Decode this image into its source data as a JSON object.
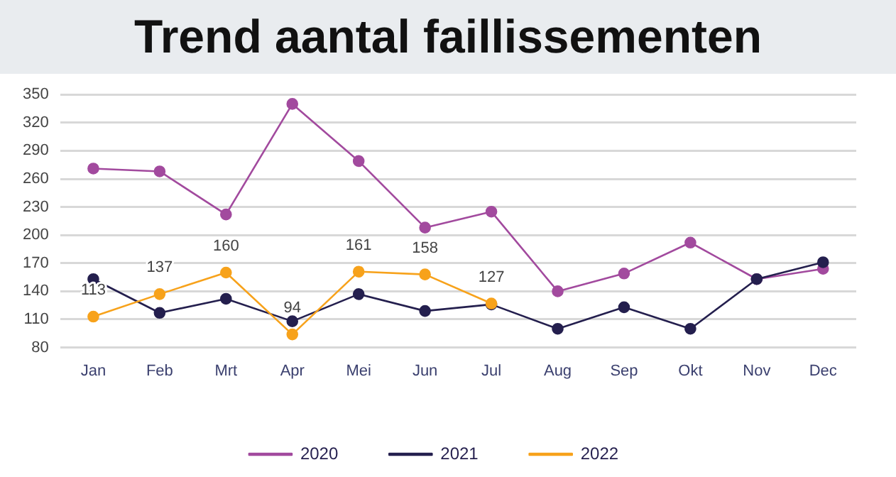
{
  "chart_data": {
    "type": "line",
    "title": "Trend aantal faillissementen",
    "categories": [
      "Jan",
      "Feb",
      "Mrt",
      "Apr",
      "Mei",
      "Jun",
      "Jul",
      "Aug",
      "Sep",
      "Okt",
      "Nov",
      "Dec"
    ],
    "series": [
      {
        "name": "2020",
        "color": "#a24a9e",
        "values": [
          271,
          268,
          222,
          340,
          279,
          208,
          225,
          140,
          159,
          192,
          153,
          164
        ]
      },
      {
        "name": "2021",
        "color": "#241f4e",
        "values": [
          153,
          117,
          132,
          108,
          137,
          119,
          126,
          100,
          123,
          100,
          153,
          171
        ]
      },
      {
        "name": "2022",
        "color": "#f7a21b",
        "values": [
          113,
          137,
          160,
          94,
          161,
          158,
          127,
          null,
          null,
          null,
          null,
          null
        ],
        "value_labels": [
          "113",
          "137",
          "160",
          "94",
          "161",
          "158",
          "127",
          null,
          null,
          null,
          null,
          null
        ]
      }
    ],
    "ylim": [
      80,
      350
    ],
    "yticks": [
      80,
      110,
      140,
      170,
      200,
      230,
      260,
      290,
      320,
      350
    ],
    "grid": "y",
    "legend": "bottom",
    "marker": "circle",
    "line_style": "solid"
  }
}
